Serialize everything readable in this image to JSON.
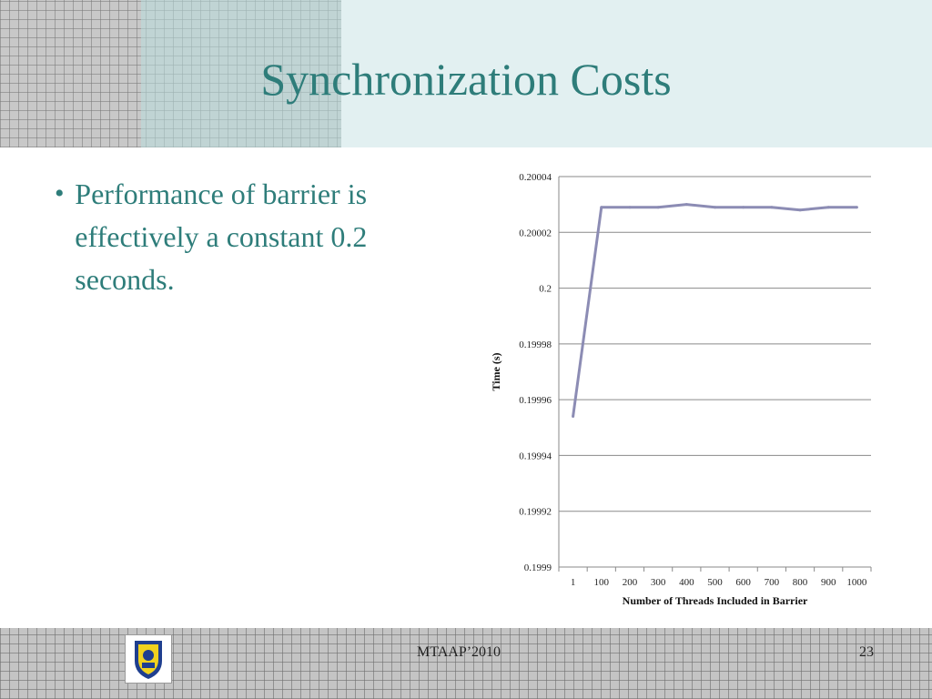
{
  "slide": {
    "title": "Synchronization Costs",
    "bullet_symbol": "•",
    "bullets": [
      "Performance of barrier is effectively a constant 0.2 seconds."
    ]
  },
  "footer": {
    "center_text": "MTAAP’2010",
    "page_number": "23",
    "logo_icon": "university-seal-icon"
  },
  "colors": {
    "accent": "#2e7d7a",
    "series_line": "#8c8cb4",
    "header_bg": "#e2f0f1"
  },
  "chart_data": {
    "type": "line",
    "categories": [
      "1",
      "100",
      "200",
      "300",
      "400",
      "500",
      "600",
      "700",
      "800",
      "900",
      "1000"
    ],
    "series": [
      {
        "values": [
          0.199954,
          0.200029,
          0.200029,
          0.200029,
          0.20003,
          0.200029,
          0.200029,
          0.200029,
          0.200028,
          0.200029,
          0.200029
        ]
      }
    ],
    "xlabel": "Number of Threads Included in Barrier",
    "ylabel": "Time (s)",
    "ylim": [
      0.1999,
      0.20004
    ],
    "yticks": [
      "0.1999",
      "0.19992",
      "0.19994",
      "0.19996",
      "0.19998",
      "0.2",
      "0.20002",
      "0.20004"
    ],
    "grid": true,
    "legend": "none"
  }
}
